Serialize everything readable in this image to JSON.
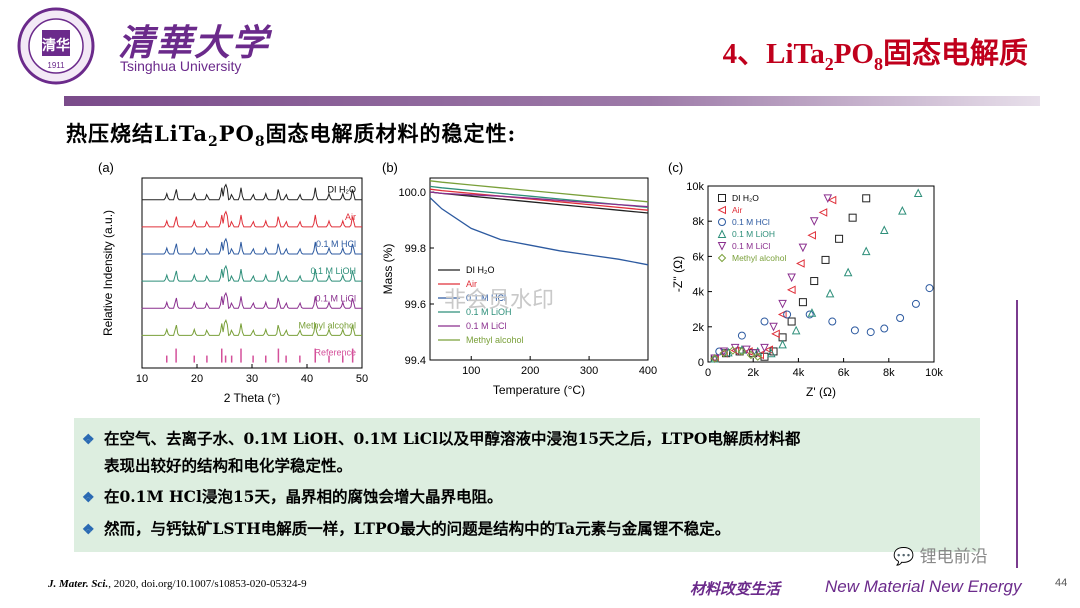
{
  "header": {
    "university_cn": "清華大学",
    "university_en": "Tsinghua University",
    "logo_year": "1911",
    "title_prefix": "4、LiTa",
    "title_sub1": "2",
    "title_mid": "PO",
    "title_sub2": "8",
    "title_suffix": "固态电解质"
  },
  "subtitle": {
    "prefix": "热压烧结LiTa",
    "sub1": "2",
    "mid": "PO",
    "sub2": "8",
    "suffix": "固态电解质材料的稳定性:"
  },
  "watermark": "非会员水印",
  "colors": {
    "purple": "#6b2a8b",
    "title_red": "#c0001c",
    "bullet_bg": "#ddeee0",
    "series": [
      "#222222",
      "#e0303a",
      "#2d5aa0",
      "#2e8f7a",
      "#8a2f8e",
      "#7aa03a"
    ]
  },
  "chart_data": [
    {
      "type": "line",
      "panel": "(a)",
      "xlabel": "2 Theta (°)",
      "ylabel": "Relative Indensity (a.u.)",
      "xlim": [
        10,
        50
      ],
      "xticks": [
        "10",
        "20",
        "30",
        "40",
        "50"
      ],
      "series": [
        {
          "name": "DI H2O"
        },
        {
          "name": "Air"
        },
        {
          "name": "0.1 M HCl"
        },
        {
          "name": "0.1 M LiOH"
        },
        {
          "name": "0.1 M LiCl"
        },
        {
          "name": "Methyl alcohol"
        },
        {
          "name": "Reference"
        }
      ],
      "peaks_2theta": [
        14.5,
        16.2,
        19.5,
        21.8,
        24.5,
        25.2,
        26.3,
        28.0,
        30.2,
        32.5,
        34.8,
        36.2,
        38.7,
        41.5,
        44.0,
        46.5,
        48.3
      ]
    },
    {
      "type": "line",
      "panel": "(b)",
      "xlabel": "Temperature (°C)",
      "ylabel": "Mass (%)",
      "xlim": [
        30,
        400
      ],
      "ylim": [
        99.4,
        100.05
      ],
      "xticks": [
        "100",
        "200",
        "300",
        "400"
      ],
      "yticks": [
        "99.4",
        "99.6",
        "99.8",
        "100.0"
      ],
      "x": [
        30,
        50,
        100,
        150,
        200,
        250,
        300,
        350,
        400
      ],
      "series": [
        {
          "name": "DI H2O",
          "values": [
            100.0,
            99.995,
            99.985,
            99.975,
            99.965,
            99.955,
            99.945,
            99.935,
            99.925
          ]
        },
        {
          "name": "Air",
          "values": [
            100.01,
            100.005,
            99.995,
            99.985,
            99.975,
            99.965,
            99.955,
            99.945,
            99.935
          ]
        },
        {
          "name": "0.1 M HCl",
          "values": [
            99.98,
            99.94,
            99.87,
            99.83,
            99.81,
            99.79,
            99.775,
            99.76,
            99.74
          ]
        },
        {
          "name": "0.1 M LiOH",
          "values": [
            100.02,
            100.015,
            100.005,
            99.995,
            99.985,
            99.975,
            99.965,
            99.955,
            99.945
          ]
        },
        {
          "name": "0.1 M LiCl",
          "values": [
            100.0,
            99.995,
            99.99,
            99.985,
            99.978,
            99.97,
            99.962,
            99.955,
            99.948
          ]
        },
        {
          "name": "Methyl alcohol",
          "values": [
            100.04,
            100.035,
            100.025,
            100.015,
            100.005,
            99.995,
            99.985,
            99.975,
            99.965
          ]
        }
      ],
      "legend_position": "bottom-left"
    },
    {
      "type": "scatter",
      "panel": "(c)",
      "xlabel": "Z' (Ω)",
      "ylabel": "-Z'' (Ω)",
      "xlim": [
        0,
        10000
      ],
      "ylim": [
        0,
        10000
      ],
      "xticks": [
        "0",
        "2k",
        "4k",
        "6k",
        "8k",
        "10k"
      ],
      "yticks": [
        "0",
        "2k",
        "4k",
        "6k",
        "8k",
        "10k"
      ],
      "series": [
        {
          "name": "DI H2O",
          "marker": "square",
          "points": [
            [
              300,
              200
            ],
            [
              800,
              500
            ],
            [
              1400,
              600
            ],
            [
              2000,
              500
            ],
            [
              2500,
              300
            ],
            [
              2900,
              600
            ],
            [
              3300,
              1400
            ],
            [
              3700,
              2300
            ],
            [
              4200,
              3400
            ],
            [
              4700,
              4600
            ],
            [
              5200,
              5800
            ],
            [
              5800,
              7000
            ],
            [
              6400,
              8200
            ],
            [
              7000,
              9300
            ]
          ]
        },
        {
          "name": "Air",
          "marker": "triangle-left",
          "points": [
            [
              300,
              200
            ],
            [
              700,
              500
            ],
            [
              1200,
              650
            ],
            [
              1800,
              600
            ],
            [
              2300,
              400
            ],
            [
              2700,
              700
            ],
            [
              3000,
              1600
            ],
            [
              3300,
              2700
            ],
            [
              3700,
              4100
            ],
            [
              4100,
              5600
            ],
            [
              4600,
              7200
            ],
            [
              5100,
              8500
            ],
            [
              5500,
              9200
            ]
          ]
        },
        {
          "name": "0.1 M HCl",
          "marker": "circle",
          "points": [
            [
              500,
              600
            ],
            [
              1500,
              1500
            ],
            [
              2500,
              2300
            ],
            [
              3500,
              2700
            ],
            [
              4500,
              2700
            ],
            [
              5500,
              2300
            ],
            [
              6500,
              1800
            ],
            [
              7200,
              1700
            ],
            [
              7800,
              1900
            ],
            [
              8500,
              2500
            ],
            [
              9200,
              3300
            ],
            [
              9800,
              4200
            ]
          ]
        },
        {
          "name": "0.1 M LiOH",
          "marker": "triangle-up",
          "points": [
            [
              300,
              200
            ],
            [
              900,
              550
            ],
            [
              1500,
              700
            ],
            [
              2200,
              600
            ],
            [
              2800,
              500
            ],
            [
              3300,
              1000
            ],
            [
              3900,
              1800
            ],
            [
              4600,
              2800
            ],
            [
              5400,
              3900
            ],
            [
              6200,
              5100
            ],
            [
              7000,
              6300
            ],
            [
              7800,
              7500
            ],
            [
              8600,
              8600
            ],
            [
              9300,
              9600
            ]
          ]
        },
        {
          "name": "0.1 M LiCl",
          "marker": "triangle-down",
          "points": [
            [
              300,
              200
            ],
            [
              700,
              600
            ],
            [
              1200,
              800
            ],
            [
              1700,
              700
            ],
            [
              2100,
              500
            ],
            [
              2500,
              800
            ],
            [
              2900,
              2000
            ],
            [
              3300,
              3300
            ],
            [
              3700,
              4800
            ],
            [
              4200,
              6500
            ],
            [
              4700,
              8000
            ],
            [
              5300,
              9300
            ]
          ]
        },
        {
          "name": "Methyl alcohol",
          "marker": "diamond",
          "points": [
            [
              300,
              200
            ],
            [
              700,
              500
            ],
            [
              1100,
              650
            ],
            [
              1500,
              600
            ],
            [
              1900,
              400
            ],
            [
              2200,
              300
            ]
          ]
        }
      ],
      "legend_position": "top-left"
    }
  ],
  "bullets": [
    {
      "line1": "在空气、去离子水、0.1M LiOH、0.1M LiCl以及甲醇溶液中浸泡15天之后，LTPO电解质材料都",
      "line2": "表现出较好的结构和电化学稳定性。"
    },
    {
      "line1": "在0.1M HCl浸泡15天，晶界相的腐蚀会增大晶界电阻。"
    },
    {
      "line1": "然而，与钙钛矿LSTH电解质一样，LTPO最大的问题是结构中的Ta元素与金属锂不稳定。"
    }
  ],
  "footer": {
    "journal": "J. Mater. Sci.",
    "citation_rest": ", 2020, doi.org/10.1007/s10853-020-05324-9",
    "slogan_cn": "材料改变生活",
    "slogan_en": "New Material New Energy",
    "wechat": "锂电前沿",
    "page": "44"
  }
}
